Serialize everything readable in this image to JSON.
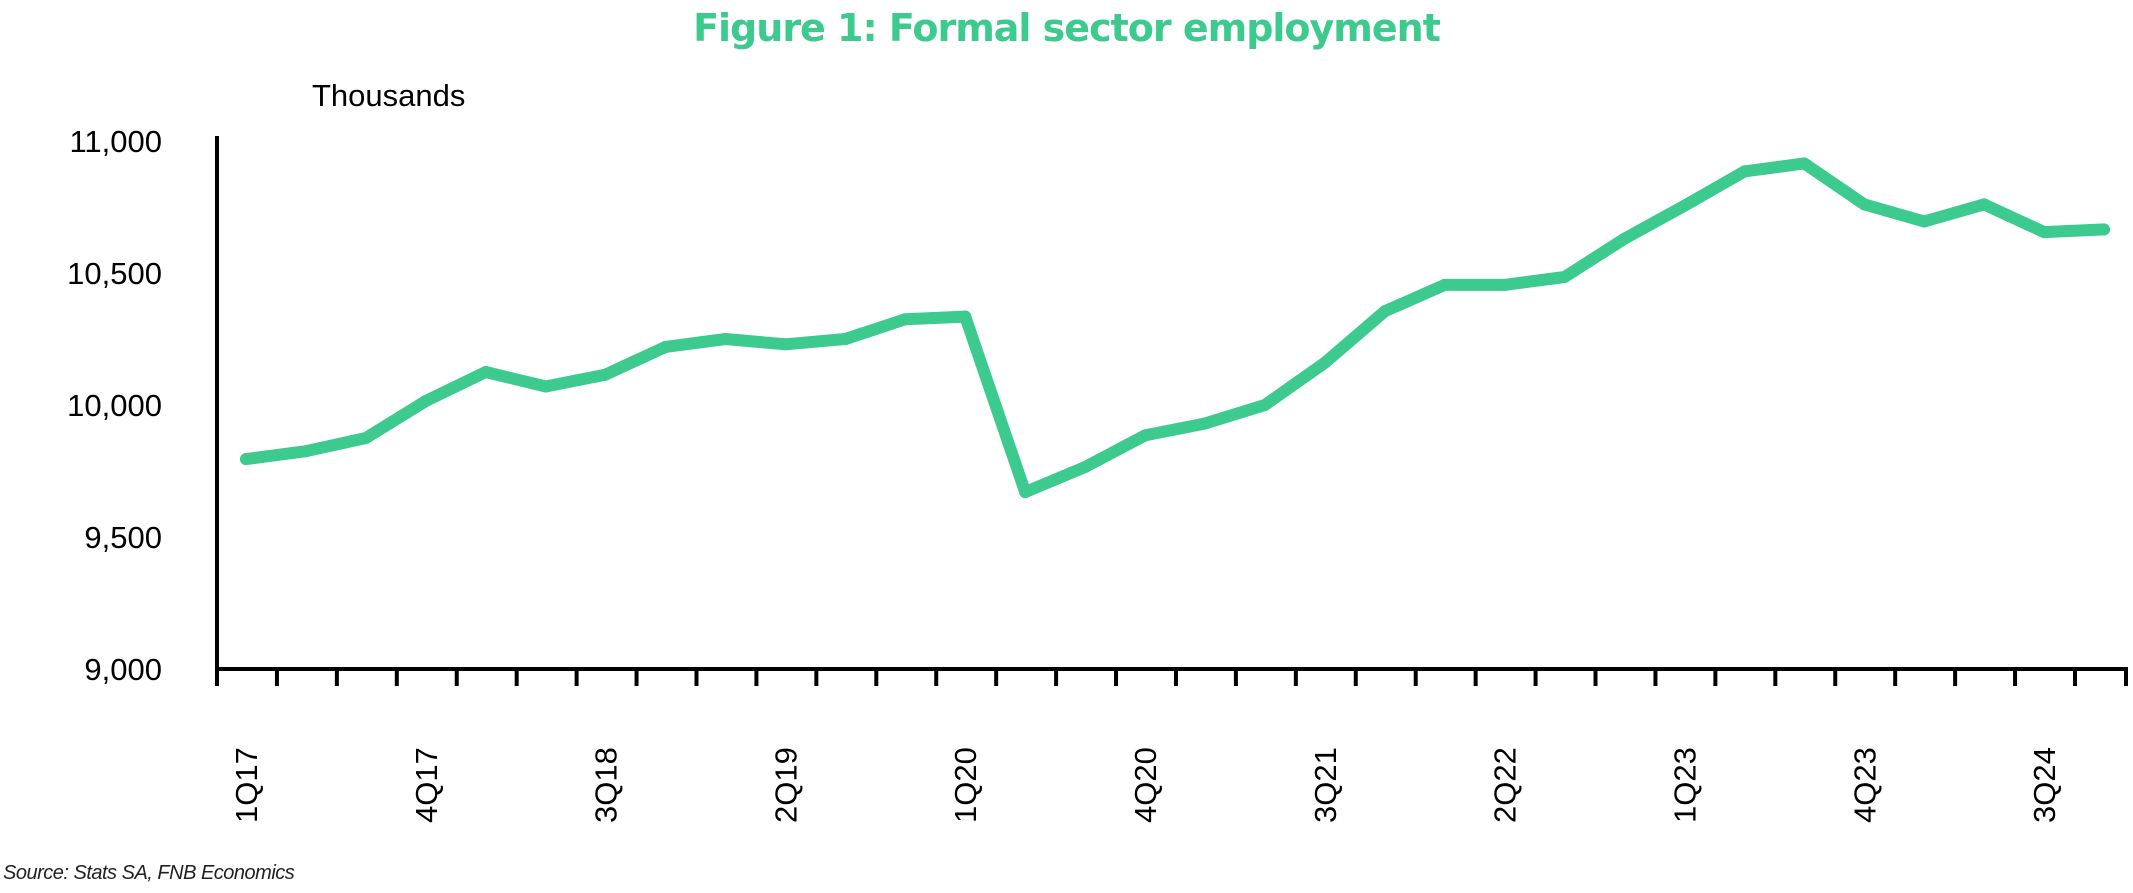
{
  "chart_data": {
    "type": "line",
    "title": "Figure 1: Formal sector employment",
    "ylabel": "Thousands",
    "xlabel": "",
    "ylim": [
      9000,
      11000
    ],
    "yticks": [
      "11,000",
      "10,500",
      "10,000",
      "9,500",
      "9,000"
    ],
    "ytick_values": [
      11000,
      10500,
      10000,
      9500,
      9000
    ],
    "x": [
      "1Q17",
      "2Q17",
      "3Q17",
      "4Q17",
      "1Q18",
      "2Q18",
      "3Q18",
      "4Q18",
      "1Q19",
      "2Q19",
      "3Q19",
      "4Q19",
      "1Q20",
      "2Q20",
      "3Q20",
      "4Q20",
      "1Q21",
      "2Q21",
      "3Q21",
      "4Q21",
      "1Q22",
      "2Q22",
      "3Q22",
      "4Q22",
      "1Q23",
      "2Q23",
      "3Q23",
      "4Q23",
      "1Q24",
      "2Q24",
      "3Q24",
      "4Q24"
    ],
    "xtick_labels": [
      "1Q17",
      "4Q17",
      "3Q18",
      "2Q19",
      "1Q20",
      "4Q20",
      "3Q21",
      "2Q22",
      "1Q23",
      "4Q23",
      "3Q24"
    ],
    "series": [
      {
        "color": "#3cca8f",
        "values": [
          9795,
          9825,
          9875,
          10015,
          10125,
          10070,
          10115,
          10220,
          10250,
          10230,
          10250,
          10325,
          10335,
          9670,
          9765,
          9885,
          9930,
          10000,
          10160,
          10355,
          10455,
          10455,
          10485,
          10630,
          10755,
          10885,
          10915,
          10760,
          10695,
          10760,
          10655,
          10665
        ]
      }
    ],
    "grid": false,
    "legend": "none"
  },
  "source": "Source: Stats SA, FNB Economics",
  "colors": {
    "accent": "#3cca8f",
    "axis": "#000000"
  }
}
